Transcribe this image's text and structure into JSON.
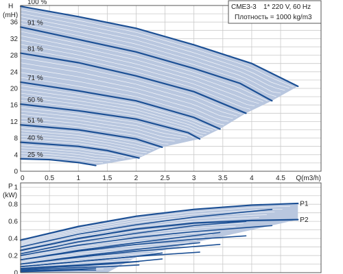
{
  "chart_data": [
    {
      "type": "line",
      "title": "",
      "info_box": {
        "model": "CME3-3",
        "supply": "1* 220 V, 60 Hz",
        "density": "Плотность = 1000 kg/m3"
      },
      "ylabel": "H",
      "yunit": "(mH)",
      "xlabel": "Q(m3/h)",
      "xlim": [
        0,
        5.2
      ],
      "ylim": [
        0,
        40
      ],
      "x_ticks": [
        "0",
        "0.5",
        "1",
        "1.5",
        "2",
        "2.5",
        "3",
        "3.5",
        "4",
        "4.5",
        "Q(m3/h)"
      ],
      "x_tick_values": [
        0,
        0.5,
        1,
        1.5,
        2,
        2.5,
        3,
        3.5,
        4,
        4.5
      ],
      "y_ticks": [
        "0",
        "4",
        "8",
        "12",
        "16",
        "20",
        "24",
        "28",
        "32",
        "36"
      ],
      "y_tick_values": [
        0,
        4,
        8,
        12,
        16,
        20,
        24,
        28,
        32,
        36
      ],
      "grid": true,
      "series": [
        {
          "name": "100 %",
          "x": [
            0,
            1,
            2,
            3,
            4,
            4.8
          ],
          "y": [
            39.8,
            37.3,
            34.5,
            30.5,
            26.0,
            20.5
          ]
        },
        {
          "name": "91 %",
          "x": [
            0,
            1,
            2,
            3,
            3.8,
            4.35
          ],
          "y": [
            34.8,
            31.8,
            28.8,
            24.8,
            21.2,
            17.0
          ]
        },
        {
          "name": "81 %",
          "x": [
            0,
            1,
            2,
            3,
            3.9
          ],
          "y": [
            28.5,
            26.2,
            23.0,
            19.2,
            14.0
          ]
        },
        {
          "name": "71 %",
          "x": [
            0,
            1,
            2,
            3,
            3.45
          ],
          "y": [
            21.5,
            19.4,
            17.0,
            13.0,
            10.2
          ]
        },
        {
          "name": "60 %",
          "x": [
            0,
            1,
            2,
            2.9,
            3.1
          ],
          "y": [
            16.2,
            14.6,
            12.6,
            9.3,
            7.8
          ]
        },
        {
          "name": "51 %",
          "x": [
            0,
            1,
            2,
            2.45
          ],
          "y": [
            11.2,
            10.0,
            7.8,
            5.8
          ]
        },
        {
          "name": "40 %",
          "x": [
            0,
            1,
            1.5,
            2.05
          ],
          "y": [
            7.0,
            6.0,
            5.0,
            3.2
          ]
        },
        {
          "name": "25 %",
          "x": [
            0,
            0.5,
            1.0,
            1.3
          ],
          "y": [
            3.0,
            2.8,
            2.1,
            1.4
          ]
        }
      ]
    },
    {
      "type": "line",
      "title": "",
      "ylabel": "P",
      "yunit": "(kW)",
      "xlim": [
        0,
        5.2
      ],
      "ylim": [
        0,
        1.05
      ],
      "y_ticks": [
        "0",
        "0.2",
        "0.4",
        "0.6",
        "0.8",
        "1"
      ],
      "y_tick_values": [
        0,
        0.2,
        0.4,
        0.6,
        0.8,
        1.0
      ],
      "grid": true,
      "series": [
        {
          "name": "P1",
          "x": [
            0,
            1,
            2,
            3,
            4,
            4.8
          ],
          "y": [
            0.38,
            0.54,
            0.66,
            0.74,
            0.79,
            0.81
          ]
        },
        {
          "name": "P2",
          "x": [
            0,
            1,
            2,
            3,
            4,
            4.8
          ],
          "y": [
            0.26,
            0.4,
            0.51,
            0.58,
            0.61,
            0.62
          ]
        },
        {
          "name": "",
          "x": [
            0,
            1,
            2,
            3,
            4.35
          ],
          "y": [
            0.3,
            0.45,
            0.56,
            0.65,
            0.74
          ]
        },
        {
          "name": "",
          "x": [
            0,
            1,
            2,
            3,
            4.35
          ],
          "y": [
            0.2,
            0.32,
            0.41,
            0.48,
            0.55
          ]
        },
        {
          "name": "",
          "x": [
            0,
            1,
            2,
            3,
            3.9
          ],
          "y": [
            0.22,
            0.36,
            0.46,
            0.55,
            0.6
          ]
        },
        {
          "name": "",
          "x": [
            0,
            1,
            2,
            3,
            3.9
          ],
          "y": [
            0.15,
            0.25,
            0.33,
            0.39,
            0.43
          ]
        },
        {
          "name": "",
          "x": [
            0,
            1,
            2,
            3.45
          ],
          "y": [
            0.15,
            0.26,
            0.35,
            0.47
          ]
        },
        {
          "name": "",
          "x": [
            0,
            1,
            2,
            3.45
          ],
          "y": [
            0.1,
            0.18,
            0.25,
            0.33
          ]
        },
        {
          "name": "",
          "x": [
            0,
            1,
            2,
            3.1
          ],
          "y": [
            0.1,
            0.19,
            0.27,
            0.35
          ]
        },
        {
          "name": "",
          "x": [
            0,
            1,
            2,
            3.1
          ],
          "y": [
            0.07,
            0.13,
            0.19,
            0.24
          ]
        },
        {
          "name": "",
          "x": [
            0,
            1,
            2,
            2.45
          ],
          "y": [
            0.07,
            0.13,
            0.19,
            0.23
          ]
        },
        {
          "name": "",
          "x": [
            0,
            1,
            2,
            2.45
          ],
          "y": [
            0.05,
            0.09,
            0.13,
            0.16
          ]
        },
        {
          "name": "",
          "x": [
            0,
            1,
            1.5,
            2.05
          ],
          "y": [
            0.04,
            0.08,
            0.1,
            0.13
          ]
        },
        {
          "name": "",
          "x": [
            0,
            1,
            1.5,
            2.05
          ],
          "y": [
            0.03,
            0.06,
            0.07,
            0.09
          ]
        },
        {
          "name": "",
          "x": [
            0,
            0.5,
            1.0,
            1.3
          ],
          "y": [
            0.02,
            0.03,
            0.04,
            0.05
          ]
        },
        {
          "name": "",
          "x": [
            0,
            0.5,
            1.0,
            1.3
          ],
          "y": [
            0.01,
            0.02,
            0.03,
            0.03
          ]
        }
      ],
      "area_upper": {
        "x": [
          0,
          1,
          2,
          3,
          4,
          4.8
        ],
        "y": [
          0.38,
          0.54,
          0.66,
          0.74,
          0.79,
          0.81
        ]
      },
      "area_lower": {
        "x": [
          0,
          1,
          1.5,
          2,
          3,
          4,
          4.8
        ],
        "y": [
          0.0,
          0.0,
          0.0,
          0.18,
          0.35,
          0.5,
          0.62
        ]
      }
    }
  ],
  "colors": {
    "curve": "#1b4f94",
    "area": "#b9c7df",
    "grid": "#c9c9c9",
    "frame": "#555555"
  }
}
